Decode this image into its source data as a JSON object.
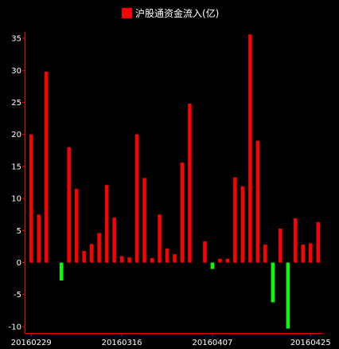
{
  "chart_data": {
    "type": "bar",
    "legend": {
      "label": "沪股通资金流入(亿)",
      "position": "top-center"
    },
    "colors": {
      "positive": "#ff0000",
      "negative": "#00ff00",
      "axis": "#ff0000",
      "background": "#000000",
      "text": "#ffffff"
    },
    "ylim": [
      -11,
      36
    ],
    "yticks": [
      35,
      30,
      25,
      20,
      15,
      10,
      5,
      0,
      -5,
      -10
    ],
    "grid": false,
    "x_tick_labels": [
      {
        "label": "20160229",
        "index": 0
      },
      {
        "label": "20160316",
        "index": 12
      },
      {
        "label": "20160407",
        "index": 24
      },
      {
        "label": "20160425",
        "index": 37
      }
    ],
    "values": [
      20.0,
      7.5,
      29.8,
      null,
      -2.8,
      18.0,
      11.5,
      1.8,
      2.9,
      4.6,
      12.1,
      7.0,
      1.0,
      0.8,
      20.0,
      13.2,
      0.7,
      7.5,
      2.2,
      1.3,
      15.6,
      24.8,
      null,
      3.3,
      -1.0,
      0.6,
      0.6,
      13.3,
      11.9,
      35.6,
      19.0,
      2.8,
      -6.2,
      5.3,
      -10.3,
      6.9,
      2.8,
      3.0,
      6.3
    ]
  }
}
